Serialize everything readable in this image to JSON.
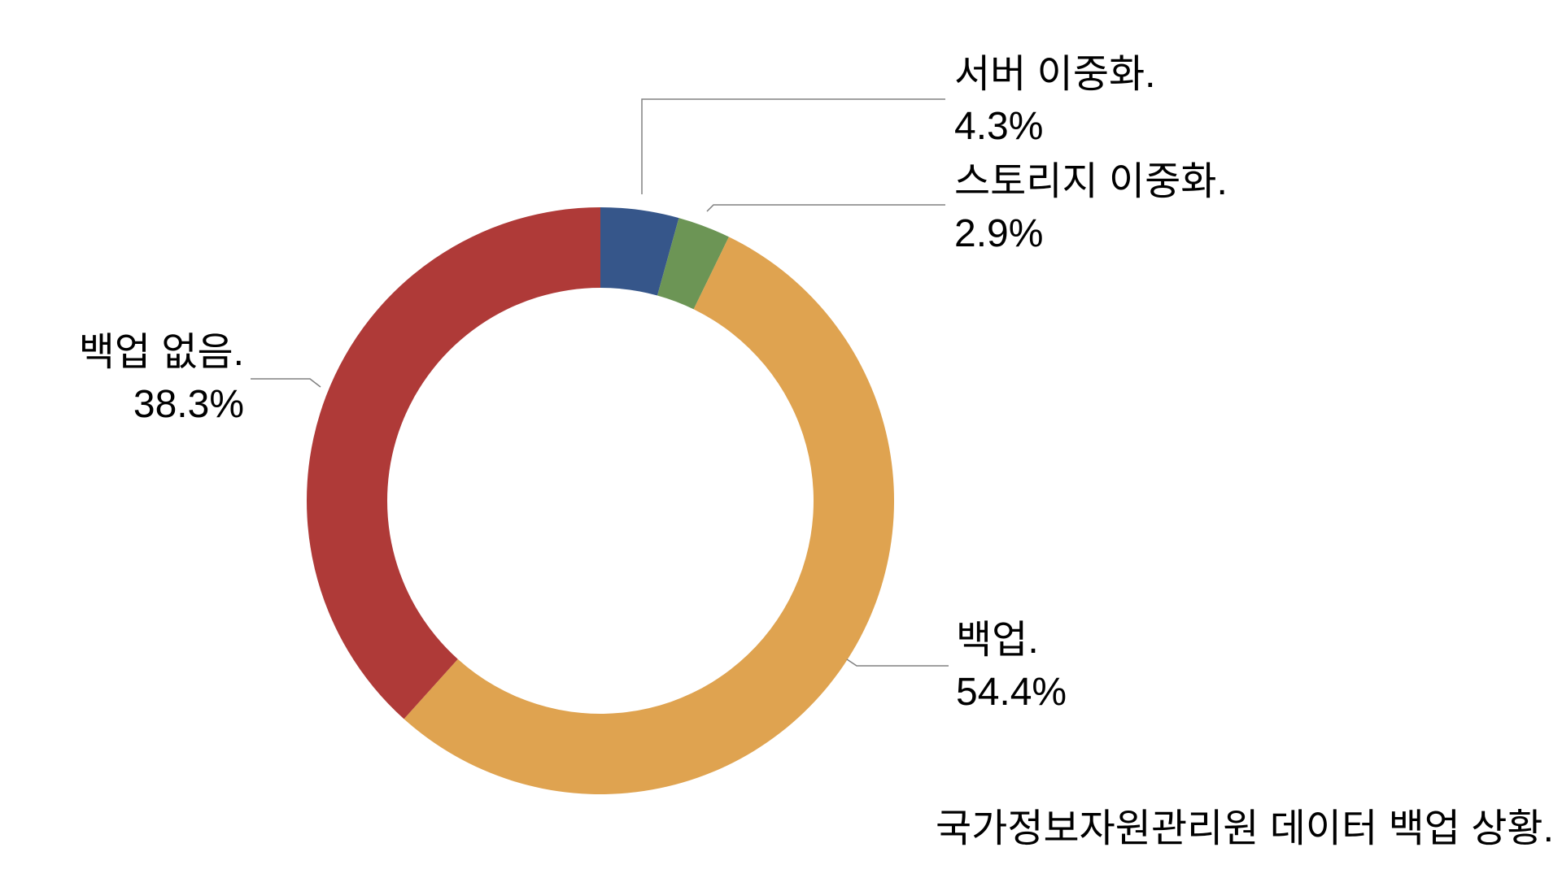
{
  "chart_data": {
    "type": "pie",
    "subtype": "donut",
    "title": "",
    "caption": "국가정보자원관리원 데이터 백업 상황.",
    "unit": "%",
    "start_angle_deg": 0,
    "direction": "clockwise",
    "inner_radius_ratio": 0.73,
    "legend_position": "none",
    "labels_style": "outside-callouts",
    "slices": [
      {
        "id": "server-redundancy",
        "label": "서버 이중화.",
        "value": 4.3,
        "display": "4.3%",
        "color": "#36568A"
      },
      {
        "id": "storage-redundancy",
        "label": "스토리지 이중화.",
        "value": 2.9,
        "display": "2.9%",
        "color": "#6C9555"
      },
      {
        "id": "backup",
        "label": "백업.",
        "value": 54.4,
        "display": "54.4%",
        "color": "#DFA350"
      },
      {
        "id": "no-backup",
        "label": "백업 없음.",
        "value": 38.3,
        "display": "38.3%",
        "color": "#AF3A38"
      }
    ],
    "leader_line_color": "#808080",
    "text_color": "#000000",
    "background_color": "#FFFFFF"
  }
}
